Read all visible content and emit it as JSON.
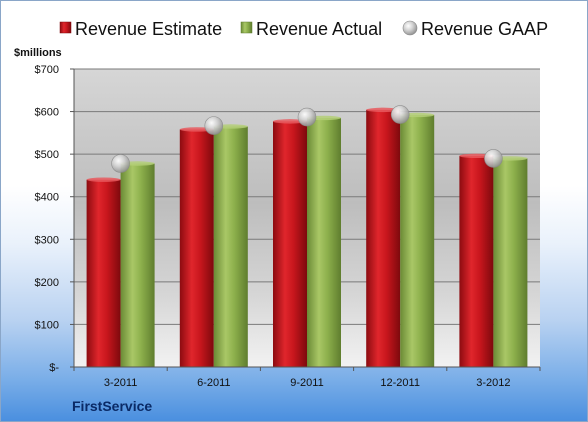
{
  "company": "FirstService",
  "colors": {
    "estimate": "#c8161d",
    "actual": "#8db04c",
    "gaap": "#b8b8b8"
  },
  "chart_data": {
    "type": "bar",
    "unit_label": "$millions",
    "categories": [
      "3-2011",
      "6-2011",
      "9-2011",
      "12-2011",
      "3-2012"
    ],
    "series": [
      {
        "name": "Revenue Estimate",
        "kind": "bar",
        "values": [
          440,
          558,
          577,
          604,
          496
        ]
      },
      {
        "name": "Revenue Actual",
        "kind": "bar",
        "values": [
          478,
          565,
          585,
          592,
          490
        ]
      },
      {
        "name": "Revenue GAAP",
        "kind": "marker",
        "values": [
          478,
          567,
          587,
          593,
          490
        ]
      }
    ],
    "ylim": [
      0,
      700
    ],
    "yticks": [
      0,
      100,
      200,
      300,
      400,
      500,
      600,
      700
    ],
    "ytick_labels": [
      "$-",
      "$100",
      "$200",
      "$300",
      "$400",
      "$500",
      "$600",
      "$700"
    ],
    "grid": true,
    "legend_position": "top"
  }
}
